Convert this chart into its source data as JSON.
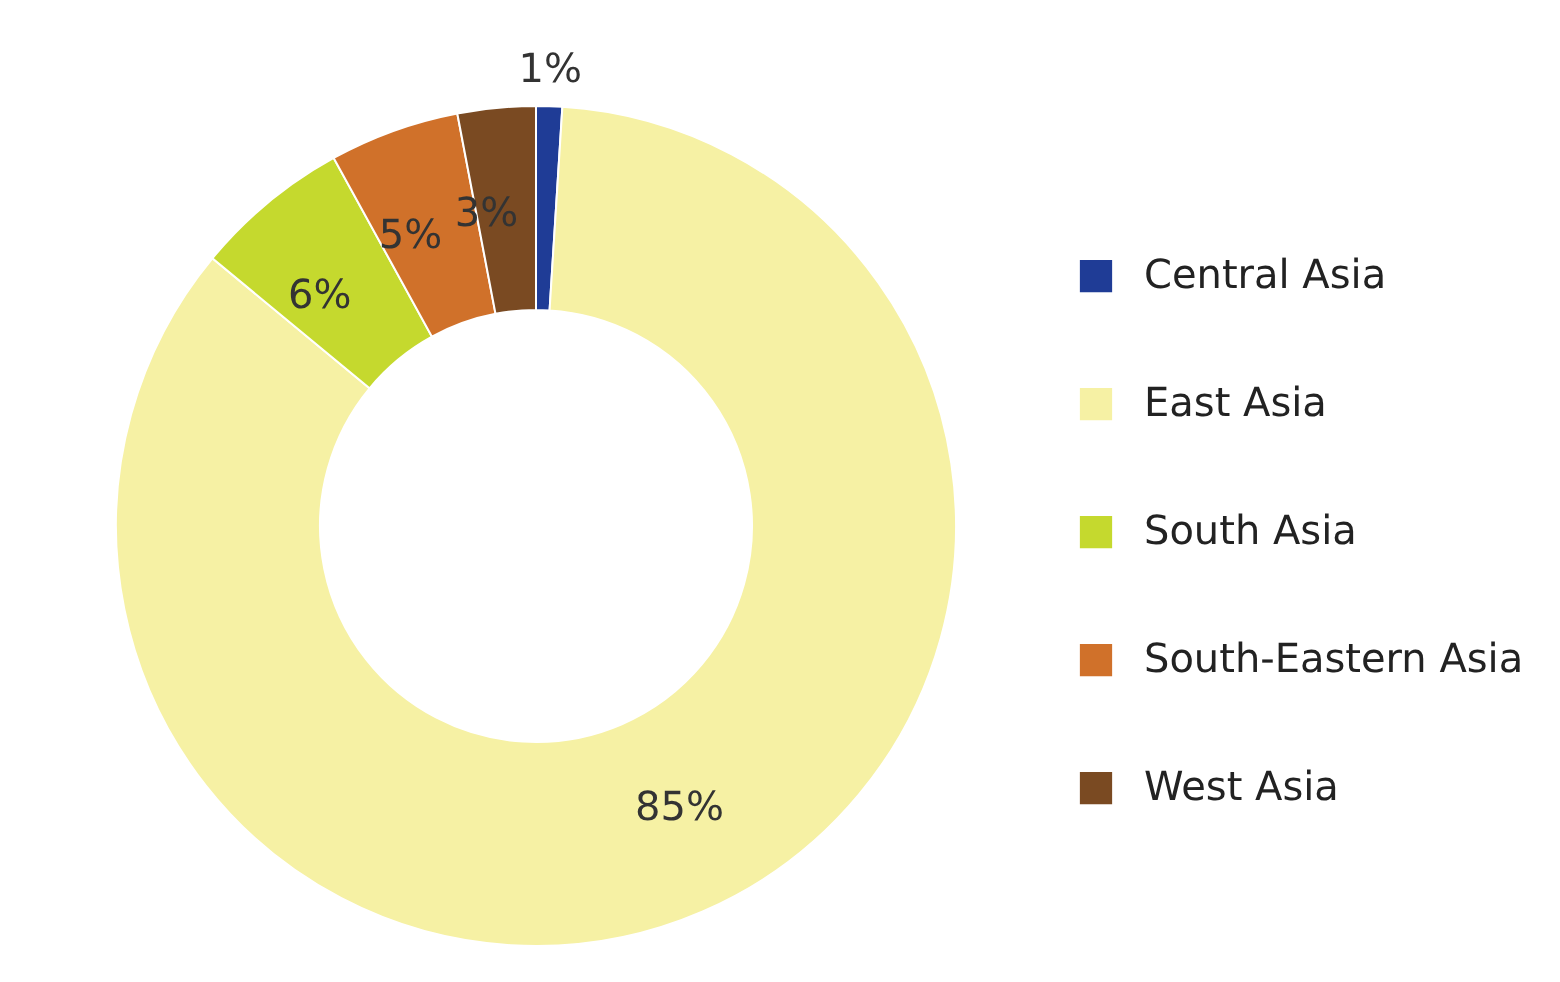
{
  "chart_data": {
    "type": "donut",
    "categories": [
      "Central Asia",
      "East Asia",
      "South Asia",
      "South-Eastern Asia",
      "West Asia"
    ],
    "values": [
      1,
      85,
      6,
      5,
      3
    ],
    "colors": [
      "#1f3c96",
      "#f6f1a4",
      "#c5d92e",
      "#d0712a",
      "#7a4a22"
    ],
    "value_labels": [
      "1%",
      "85%",
      "6%",
      "5%",
      "3%"
    ],
    "legend": "right"
  }
}
